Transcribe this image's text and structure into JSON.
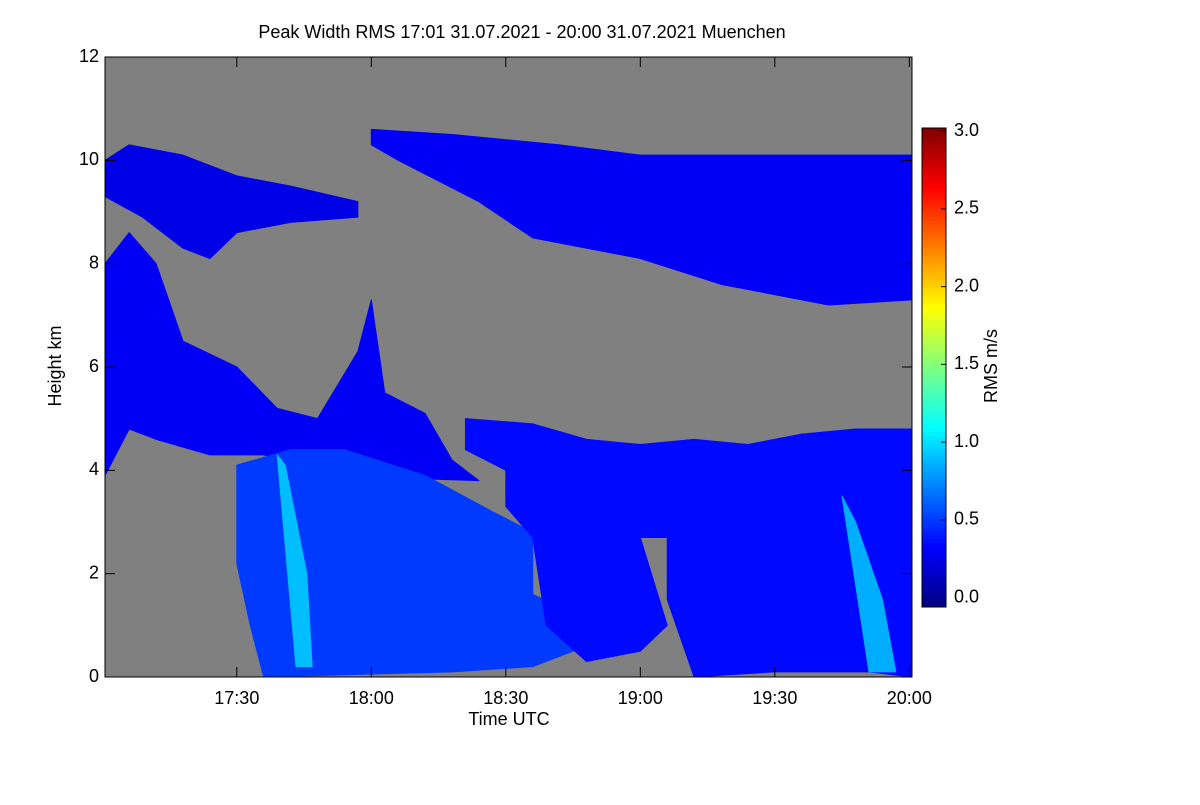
{
  "chart_data": {
    "type": "heatmap",
    "title": "Peak Width RMS   17:01 31.07.2021 - 20:00 31.07.2021 Muenchen",
    "xlabel": "Time UTC",
    "ylabel": "Height km",
    "xlim": [
      17.01,
      20.01
    ],
    "xticks": [
      {
        "value": 17.5,
        "label": "17:30"
      },
      {
        "value": 18.0,
        "label": "18:00"
      },
      {
        "value": 18.5,
        "label": "18:30"
      },
      {
        "value": 19.0,
        "label": "19:00"
      },
      {
        "value": 19.5,
        "label": "19:30"
      },
      {
        "value": 20.0,
        "label": "20:00"
      }
    ],
    "ylim": [
      0,
      12
    ],
    "yticks": [
      0,
      2,
      4,
      6,
      8,
      10,
      12
    ],
    "background": "#808080",
    "colorbar": {
      "label": "RMS m/s",
      "colormap": "jet",
      "lim": [
        -0.06,
        3.02
      ],
      "ticks": [
        {
          "value": 0,
          "label": "0.0"
        },
        {
          "value": 0.5,
          "label": "0.5"
        },
        {
          "value": 1,
          "label": "1.0"
        },
        {
          "value": 1.5,
          "label": "1.5"
        },
        {
          "value": 2,
          "label": "2.0"
        },
        {
          "value": 2.5,
          "label": "2.5"
        },
        {
          "value": 3,
          "label": "3.0"
        }
      ]
    },
    "regions": [
      {
        "x": [
          17.01,
          17.1,
          17.3,
          17.5,
          17.7,
          17.95,
          17.95,
          17.7,
          17.5,
          17.4,
          17.3,
          17.15,
          17.01
        ],
        "y": [
          10.0,
          10.3,
          10.1,
          9.7,
          9.5,
          9.2,
          8.9,
          8.8,
          8.6,
          8.1,
          8.3,
          8.9,
          9.3
        ],
        "value": 0.25
      },
      {
        "x": [
          18.0,
          18.3,
          18.7,
          19.0,
          19.5,
          20.01,
          20.01,
          19.7,
          19.3,
          19.0,
          18.6,
          18.4,
          18.1,
          18.0
        ],
        "y": [
          10.6,
          10.5,
          10.3,
          10.1,
          10.1,
          10.1,
          7.3,
          7.2,
          7.6,
          8.1,
          8.5,
          9.2,
          10.0,
          10.3
        ],
        "value": 0.3
      },
      {
        "x": [
          17.01,
          17.1,
          17.2,
          17.3,
          17.5,
          17.65,
          17.8,
          17.95,
          18.0,
          18.05,
          18.2,
          18.3,
          18.4,
          17.8,
          17.6,
          17.4,
          17.2,
          17.1,
          17.01
        ],
        "y": [
          8.0,
          8.6,
          8.0,
          6.5,
          6.0,
          5.2,
          5.0,
          6.3,
          7.3,
          5.5,
          5.1,
          4.2,
          3.8,
          3.9,
          4.3,
          4.3,
          4.6,
          4.8,
          3.9
        ],
        "value": 0.3
      },
      {
        "x": [
          17.5,
          17.7,
          17.9,
          18.2,
          18.45,
          18.6,
          18.6,
          18.85,
          18.85,
          18.6,
          18.3,
          17.6,
          17.55,
          17.5
        ],
        "y": [
          4.1,
          4.4,
          4.4,
          3.9,
          3.2,
          2.8,
          1.6,
          1.0,
          0.7,
          0.2,
          0.1,
          0.0,
          1.0,
          2.2
        ],
        "value": 0.5
      },
      {
        "x": [
          18.35,
          18.6,
          18.8,
          19.0,
          19.2,
          19.4,
          19.6,
          19.8,
          20.01,
          20.01,
          19.85,
          19.5,
          19.2,
          19.1,
          19.1,
          19.0,
          19.1,
          19.0,
          18.8,
          18.65,
          18.6,
          18.5,
          18.5,
          18.35
        ],
        "y": [
          5.0,
          4.9,
          4.6,
          4.5,
          4.6,
          4.5,
          4.7,
          4.8,
          4.8,
          0.0,
          0.1,
          0.1,
          0.0,
          1.5,
          2.7,
          2.7,
          1.0,
          0.5,
          0.3,
          1.0,
          2.7,
          3.3,
          4.0,
          4.4
        ],
        "value": 0.35
      },
      {
        "x": [
          17.65,
          17.72,
          17.78,
          17.76,
          17.68
        ],
        "y": [
          4.3,
          0.2,
          0.2,
          2.0,
          4.1
        ],
        "value": 0.9
      },
      {
        "x": [
          19.75,
          19.85,
          19.95,
          19.9,
          19.8
        ],
        "y": [
          3.5,
          0.1,
          0.1,
          1.5,
          3.0
        ],
        "value": 0.85
      }
    ]
  }
}
